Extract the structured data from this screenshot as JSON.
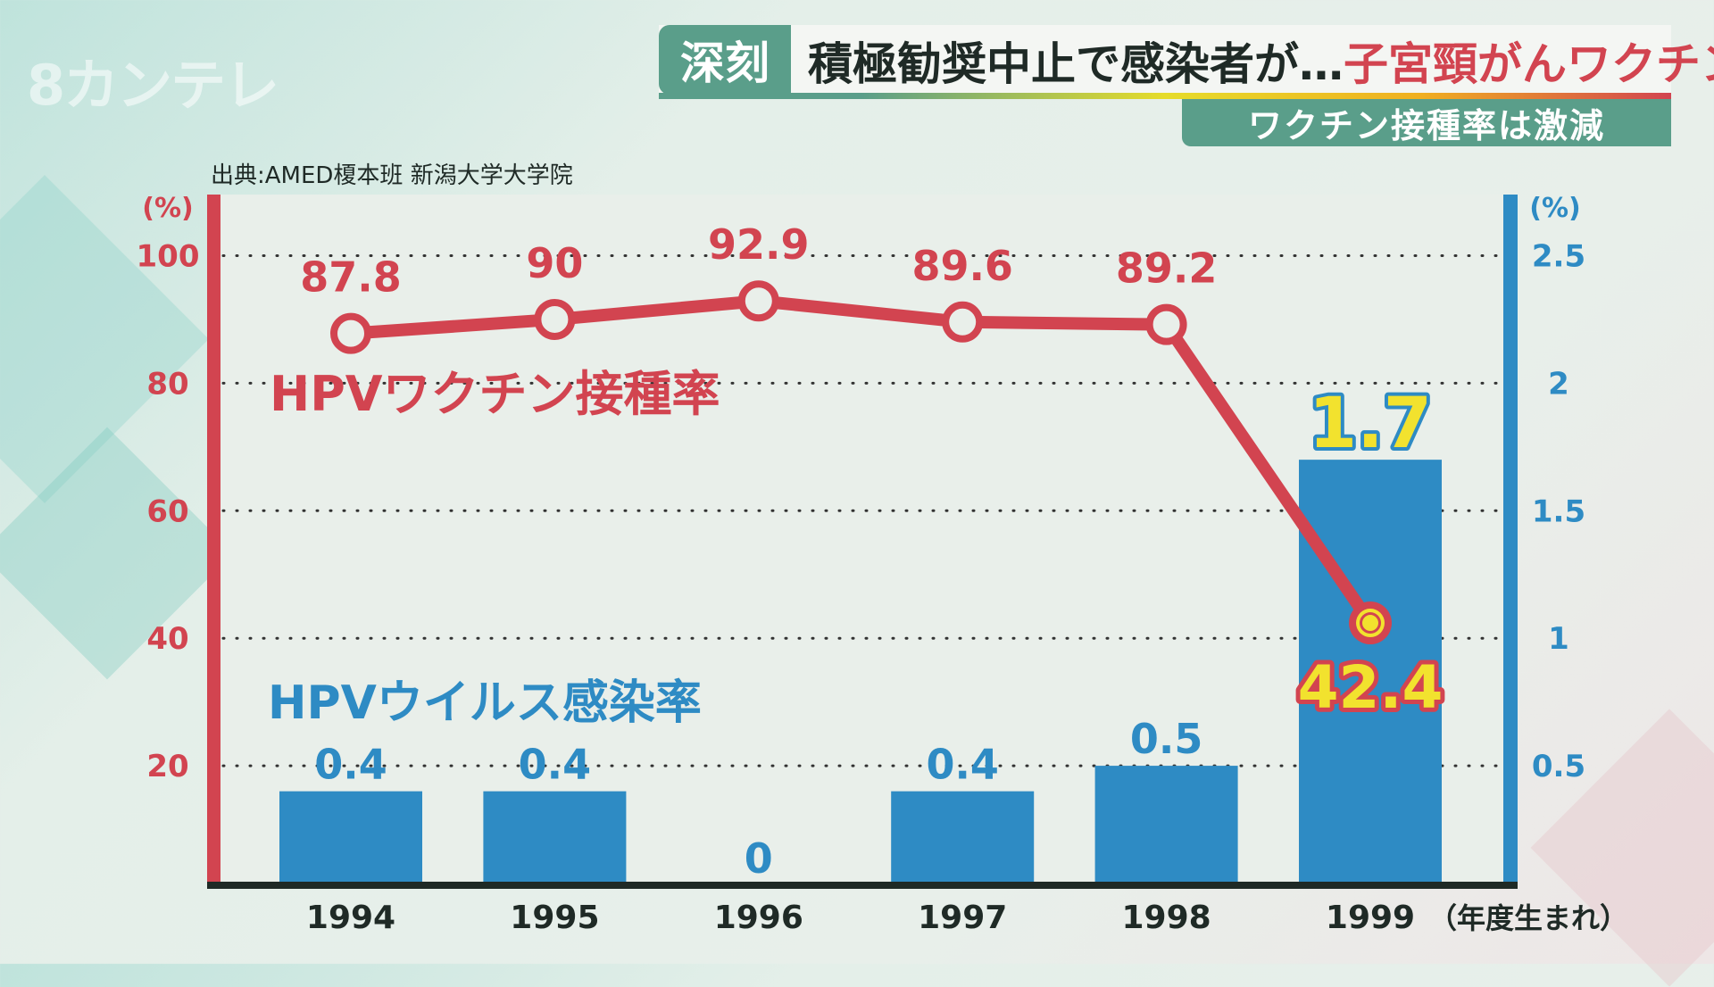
{
  "logo": "8カンテレ",
  "header": {
    "tag": "深刻",
    "title_black": "積極勧奨中止で感染者が…",
    "title_red": "子宮頸がんワクチン",
    "subtitle": "ワクチン接種率は激減"
  },
  "source": "出典:AMED榎本班 新潟大学大学院",
  "colors": {
    "red": "#d24450",
    "blue": "#2e8bc4",
    "yellow": "#f2e22e"
  },
  "chart_data": {
    "type": "bar+line",
    "categories": [
      "1994",
      "1995",
      "1996",
      "1997",
      "1998",
      "1999"
    ],
    "x_suffix": "（年度生まれ）",
    "series": [
      {
        "name": "HPVワクチン接種率",
        "type": "line",
        "axis": "left",
        "values": [
          87.8,
          90,
          92.9,
          89.6,
          89.2,
          42.4
        ],
        "labels": [
          "87.8",
          "90",
          "92.9",
          "89.6",
          "89.2",
          "42.4"
        ]
      },
      {
        "name": "HPVウイルス感染率",
        "type": "bar",
        "axis": "right",
        "values": [
          0.4,
          0.4,
          0,
          0.4,
          0.5,
          1.7
        ],
        "labels": [
          "0.4",
          "0.4",
          "0",
          "0.4",
          "0.5",
          "1.7"
        ]
      }
    ],
    "left_axis": {
      "unit": "(%)",
      "ylim": [
        0,
        100
      ],
      "ticks": [
        "20",
        "40",
        "60",
        "80",
        "100"
      ],
      "tick_values": [
        20,
        40,
        60,
        80,
        100
      ]
    },
    "right_axis": {
      "unit": "(%)",
      "ylim": [
        0,
        2.5
      ],
      "ticks": [
        "0.5",
        "1",
        "1.5",
        "2",
        "2.5"
      ],
      "tick_values": [
        0.5,
        1,
        1.5,
        2,
        2.5
      ]
    },
    "grid": "dotted horizontal"
  }
}
